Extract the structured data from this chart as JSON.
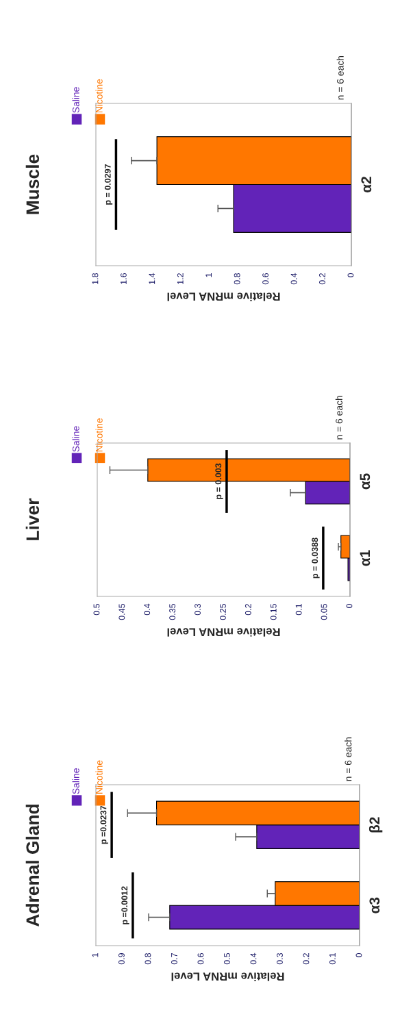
{
  "chart_data": [
    {
      "type": "bar",
      "orientation": "horizontal",
      "title": "Adrenal Gland",
      "xlabel": "Relative mRNA Level",
      "categories": [
        "β2",
        "α3"
      ],
      "xlim": [
        1,
        0
      ],
      "xticks": [
        1,
        0.9,
        0.8,
        0.7,
        0.6,
        0.5,
        0.4,
        0.3,
        0.2,
        0.1,
        0
      ],
      "legend": "left",
      "grid": false,
      "series": [
        {
          "name": "Saline",
          "color": "#6223b8",
          "values": [
            0.39,
            0.72
          ],
          "errors": [
            0.08,
            0.08
          ]
        },
        {
          "name": "Nicotine",
          "color": "#ff7700",
          "values": [
            0.77,
            0.32
          ],
          "errors": [
            0.11,
            0.03
          ]
        }
      ],
      "annotations": [
        "p =0.0237",
        "p =0.0012",
        "n = 6 each"
      ]
    },
    {
      "type": "bar",
      "orientation": "horizontal",
      "title": "Liver",
      "xlabel": "Relative mRNA Level",
      "categories": [
        "α5",
        "α1"
      ],
      "xlim": [
        0.5,
        0
      ],
      "xticks": [
        0.5,
        0.45,
        0.4,
        0.35,
        0.3,
        0.25,
        0.2,
        0.15,
        0.1,
        0.05,
        0
      ],
      "legend": "left",
      "grid": false,
      "series": [
        {
          "name": "Saline",
          "color": "#6223b8",
          "values": [
            0.088,
            0.004
          ],
          "errors": [
            0.03,
            null
          ]
        },
        {
          "name": "Nicotine",
          "color": "#ff7700",
          "values": [
            0.4,
            0.018
          ],
          "errors": [
            0.075,
            0.005
          ]
        }
      ],
      "annotations": [
        "p = 0.003",
        "p = 0.0388",
        "n = 6 each"
      ]
    },
    {
      "type": "bar",
      "orientation": "horizontal",
      "title": "Muscle",
      "xlabel": "Relative mRNA Level",
      "categories": [
        "α2"
      ],
      "xlim": [
        1.8,
        0
      ],
      "xticks": [
        1.8,
        1.6,
        1.4,
        1.2,
        1,
        0.8,
        0.6,
        0.4,
        0.2,
        0
      ],
      "legend": "left",
      "grid": false,
      "series": [
        {
          "name": "Saline",
          "color": "#6223b8",
          "values": [
            0.83
          ],
          "errors": [
            0.11
          ]
        },
        {
          "name": "Nicotine",
          "color": "#ff7700",
          "values": [
            1.37
          ],
          "errors": [
            0.18
          ]
        }
      ],
      "annotations": [
        "p = 0.0297",
        "n = 6 each"
      ]
    }
  ]
}
